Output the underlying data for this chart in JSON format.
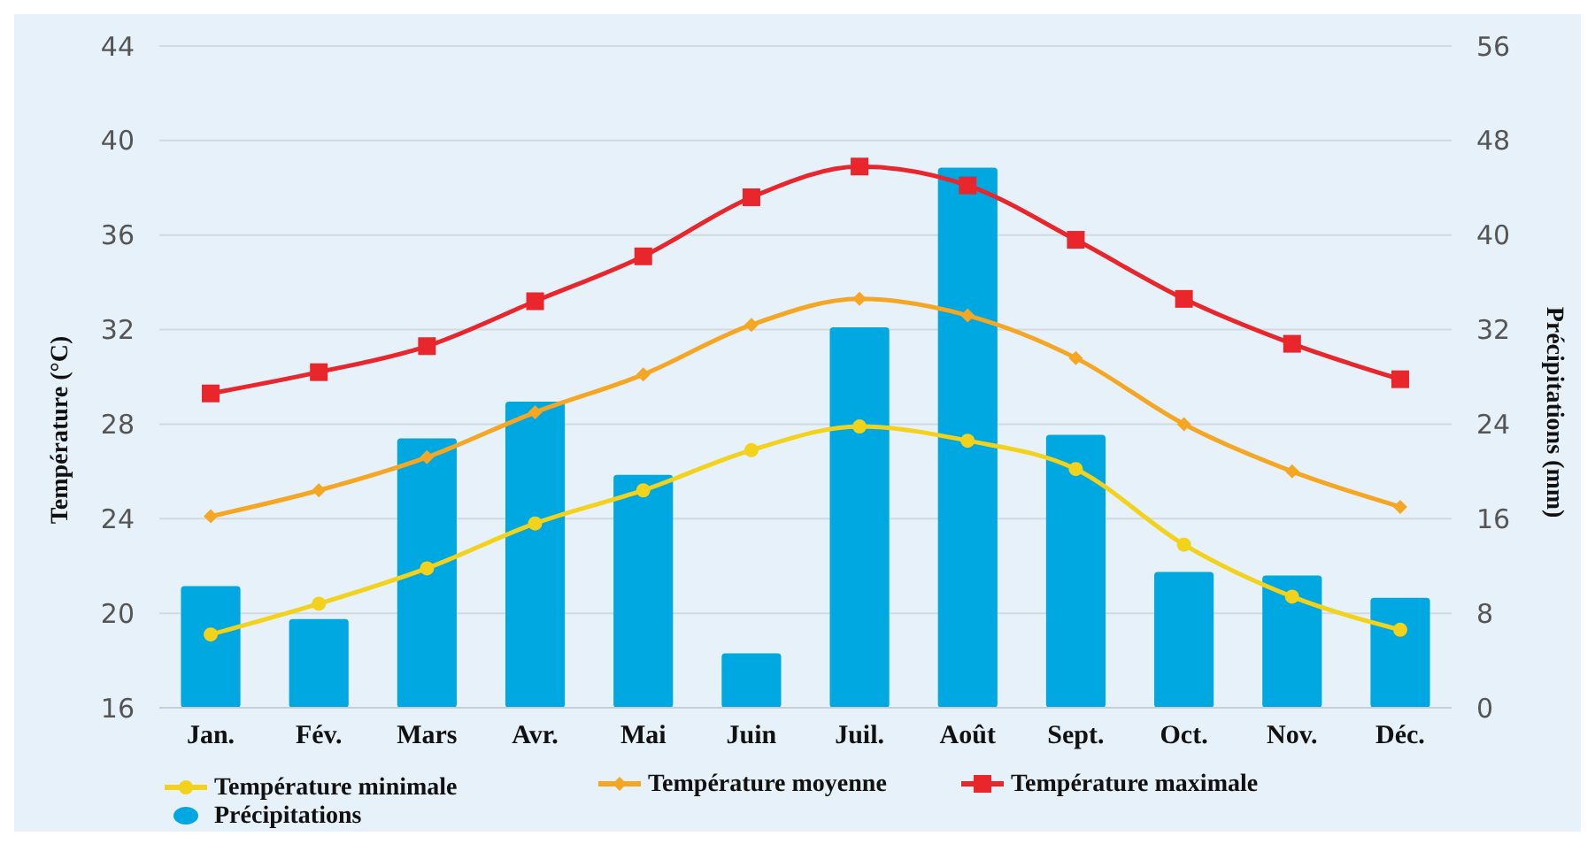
{
  "chart_data": {
    "type": "bar",
    "categories": [
      "Jan.",
      "Fév.",
      "Mars",
      "Avr.",
      "Mai",
      "Juin",
      "Juil.",
      "Août",
      "Sept.",
      "Oct.",
      "Nov.",
      "Déc."
    ],
    "ylabel": "Température (°C)",
    "y2label": "Précipitations (mm)",
    "ylim": [
      16,
      44
    ],
    "yticks": [
      16,
      20,
      24,
      28,
      32,
      36,
      40,
      44
    ],
    "y2lim": [
      0,
      56
    ],
    "y2ticks": [
      0,
      8,
      16,
      24,
      32,
      40,
      48,
      56
    ],
    "grid": "y",
    "legend": "bottom",
    "series": [
      {
        "name": "Précipitations",
        "axis": "y2",
        "color": "#00a8e1",
        "values": [
          10.3,
          7.5,
          22.8,
          25.9,
          19.7,
          4.6,
          32.2,
          45.7,
          23.1,
          11.5,
          11.2,
          9.3
        ]
      },
      {
        "name": "Température minimale",
        "type": "line",
        "color": "#f2d21a",
        "marker": "circle",
        "values": [
          19.1,
          20.4,
          21.9,
          23.8,
          25.2,
          26.9,
          27.9,
          27.3,
          26.1,
          22.9,
          20.7,
          19.3
        ]
      },
      {
        "name": "Température moyenne",
        "type": "line",
        "color": "#f5a623",
        "marker": "diamond",
        "values": [
          24.1,
          25.2,
          26.6,
          28.5,
          30.1,
          32.2,
          33.3,
          32.6,
          30.8,
          28.0,
          26.0,
          24.5
        ]
      },
      {
        "name": "Température maximale",
        "type": "line",
        "color": "#e8262b",
        "marker": "square",
        "values": [
          29.3,
          30.2,
          31.3,
          33.2,
          35.1,
          37.6,
          38.9,
          38.1,
          35.8,
          33.3,
          31.4,
          29.9
        ]
      }
    ]
  }
}
